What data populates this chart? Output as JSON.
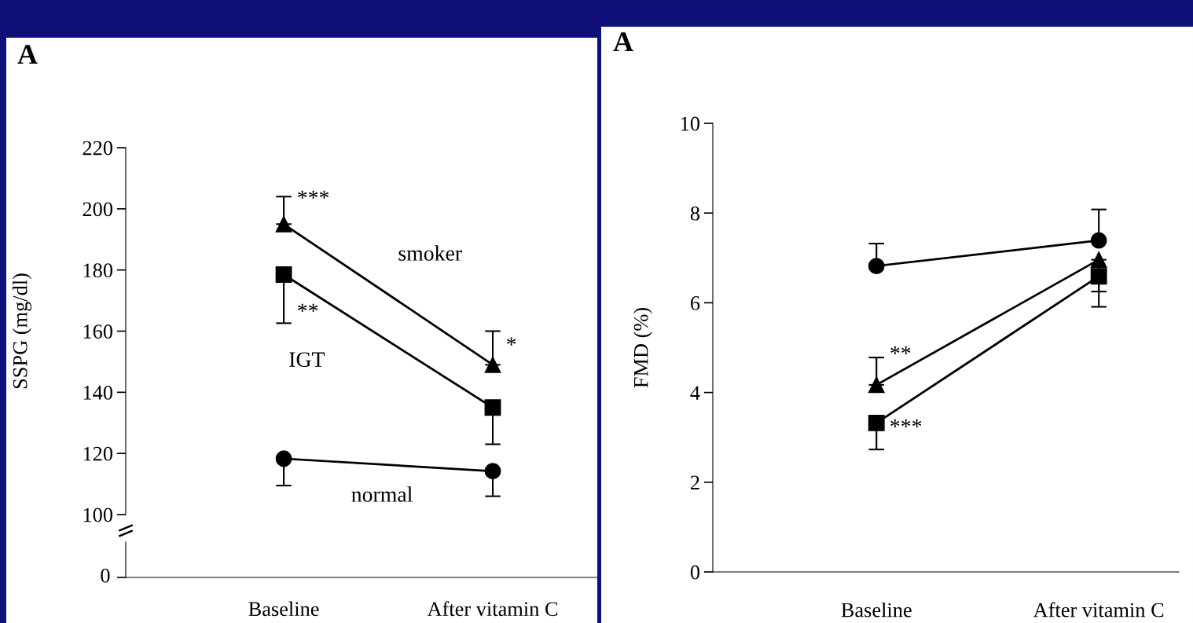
{
  "chart_data": [
    {
      "type": "line",
      "title": "A",
      "ylabel": "SSPG (mg/dl)",
      "categories": [
        "Baseline",
        "After vitamin C"
      ],
      "ylim": [
        100,
        220
      ],
      "yticks": [
        100,
        120,
        140,
        160,
        180,
        200,
        220
      ],
      "tick_labels": "y",
      "grid": false,
      "legend": false,
      "line_style": "solid",
      "series": [
        {
          "name": "smoker",
          "color": "#000000",
          "marker": "triangle",
          "values": [
            195,
            149
          ],
          "errors": [
            [
              195,
              204
            ],
            [
              149,
              160
            ]
          ]
        },
        {
          "name": "IGT",
          "color": "#000000",
          "marker": "square",
          "values": [
            178.5,
            135
          ],
          "errors": [
            [
              162.6,
              178.5
            ],
            [
              123,
              135
            ]
          ]
        },
        {
          "name": "normal",
          "color": "#000000",
          "marker": "circle",
          "values": [
            118.3,
            114.2
          ],
          "errors": [
            [
              109.5,
              118.3
            ],
            [
              106,
              114.2
            ]
          ]
        }
      ],
      "annotations": [
        {
          "text": "***",
          "x": "Baseline",
          "y": 203
        },
        {
          "text": "**",
          "x": "Baseline",
          "y": 166
        },
        {
          "text": "*",
          "x": "After vitamin C",
          "y": 155
        }
      ]
    },
    {
      "type": "other",
      "categories": [
        "Baseline",
        "After vitamin C"
      ],
      "annotations": [
        "0"
      ]
    },
    {
      "type": "line",
      "title": "A",
      "ylabel": "FMD (%)",
      "categories": [
        "Baseline",
        "After vitamin C"
      ],
      "ylim": [
        0,
        10
      ],
      "yticks": [
        0,
        2,
        4,
        6,
        8,
        10
      ],
      "grid": false,
      "legend": false,
      "line_style": "solid",
      "series": [
        {
          "color": "#000000",
          "marker": "circle",
          "values": [
            6.82,
            7.39
          ],
          "errors": [
            [
              6.82,
              7.32
            ],
            [
              7.39,
              8.08
            ]
          ]
        },
        {
          "color": "#000000",
          "marker": "triangle",
          "values": [
            4.17,
            6.96
          ],
          "errors": [
            [
              4.17,
              4.78
            ],
            [
              6.25,
              6.96
            ]
          ]
        },
        {
          "color": "#000000",
          "marker": "square",
          "values": [
            3.32,
            6.59
          ],
          "errors": [
            [
              2.73,
              3.32
            ],
            [
              5.91,
              6.59
            ]
          ]
        }
      ],
      "annotations": [
        {
          "text": "**",
          "x": "Baseline",
          "y": 4.83
        },
        {
          "text": "***",
          "x": "Baseline",
          "y": 3.2
        }
      ]
    }
  ]
}
